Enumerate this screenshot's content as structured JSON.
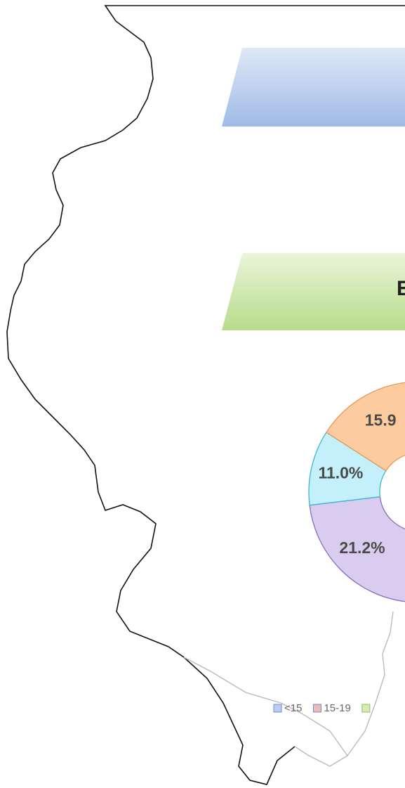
{
  "chart_data": {
    "type": "donut",
    "values": [
      21.2,
      11.0,
      15.9
    ],
    "value_labels": [
      "21.2%",
      "11.0%",
      "15.9"
    ],
    "colors": [
      "#d9cdef",
      "#c4f0fb",
      "#fccba0"
    ],
    "edge_colors": [
      "#8a6bbf",
      "#3fb5d4",
      "#e59a56"
    ],
    "legend": [
      {
        "name": "<15",
        "color": "#b8cdf0"
      },
      {
        "name": "15-19",
        "color": "#f2b8b8"
      }
    ]
  },
  "banner_text": "E"
}
